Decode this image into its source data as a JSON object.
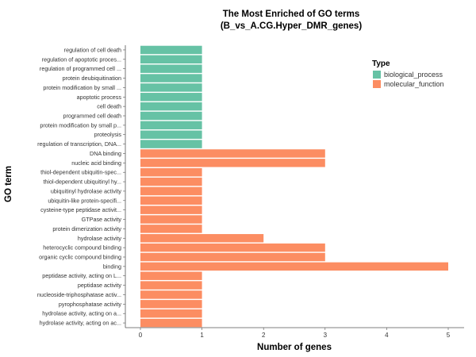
{
  "chart_data": {
    "type": "bar",
    "orientation": "horizontal",
    "title": "The Most Enriched of GO terms",
    "subtitle": "(B_vs_A.CG.Hyper_DMR_genes)",
    "xlabel": "Number of genes",
    "ylabel": "GO term",
    "xlim": [
      0,
      5.2
    ],
    "xticks": [
      0,
      1,
      2,
      3,
      4,
      5
    ],
    "grid": false,
    "legend": {
      "title": "Type",
      "placement": "top-right",
      "entries": [
        {
          "name": "biological_process",
          "color": "#66C2A5"
        },
        {
          "name": "molecular_function",
          "color": "#FC8D62"
        }
      ]
    },
    "categories": [
      {
        "label": "regulation of cell death",
        "value": 1,
        "type": "biological_process"
      },
      {
        "label": "regulation of apoptotic proces...",
        "value": 1,
        "type": "biological_process"
      },
      {
        "label": "regulation of programmed cell ...",
        "value": 1,
        "type": "biological_process"
      },
      {
        "label": "protein deubiquitination",
        "value": 1,
        "type": "biological_process"
      },
      {
        "label": "protein modification by small ...",
        "value": 1,
        "type": "biological_process"
      },
      {
        "label": "apoptotic process",
        "value": 1,
        "type": "biological_process"
      },
      {
        "label": "cell death",
        "value": 1,
        "type": "biological_process"
      },
      {
        "label": "programmed cell death",
        "value": 1,
        "type": "biological_process"
      },
      {
        "label": "protein modification by small p...",
        "value": 1,
        "type": "biological_process"
      },
      {
        "label": "proteolysis",
        "value": 1,
        "type": "biological_process"
      },
      {
        "label": "regulation of transcription, DNA...",
        "value": 1,
        "type": "biological_process"
      },
      {
        "label": "DNA binding",
        "value": 3,
        "type": "molecular_function"
      },
      {
        "label": "nucleic acid binding",
        "value": 3,
        "type": "molecular_function"
      },
      {
        "label": "thiol-dependent ubiquitin-spec...",
        "value": 1,
        "type": "molecular_function"
      },
      {
        "label": "thiol-dependent ubiquitinyl hy...",
        "value": 1,
        "type": "molecular_function"
      },
      {
        "label": "ubiquitinyl hydrolase activity",
        "value": 1,
        "type": "molecular_function"
      },
      {
        "label": "ubiquitin-like protein-specifi...",
        "value": 1,
        "type": "molecular_function"
      },
      {
        "label": "cysteine-type peptidase activit...",
        "value": 1,
        "type": "molecular_function"
      },
      {
        "label": "GTPase activity",
        "value": 1,
        "type": "molecular_function"
      },
      {
        "label": "protein dimerization activity",
        "value": 1,
        "type": "molecular_function"
      },
      {
        "label": "hydrolase activity",
        "value": 2,
        "type": "molecular_function"
      },
      {
        "label": "heterocyclic compound binding",
        "value": 3,
        "type": "molecular_function"
      },
      {
        "label": "organic cyclic compound binding",
        "value": 3,
        "type": "molecular_function"
      },
      {
        "label": "binding",
        "value": 5,
        "type": "molecular_function"
      },
      {
        "label": "peptidase activity, acting on L...",
        "value": 1,
        "type": "molecular_function"
      },
      {
        "label": "peptidase activity",
        "value": 1,
        "type": "molecular_function"
      },
      {
        "label": "nucleoside-triphosphatase activ...",
        "value": 1,
        "type": "molecular_function"
      },
      {
        "label": "pyrophosphatase activity",
        "value": 1,
        "type": "molecular_function"
      },
      {
        "label": "hydrolase activity, acting on a...",
        "value": 1,
        "type": "molecular_function"
      },
      {
        "label": "hydrolase activity, acting on ac...",
        "value": 1,
        "type": "molecular_function"
      }
    ]
  }
}
